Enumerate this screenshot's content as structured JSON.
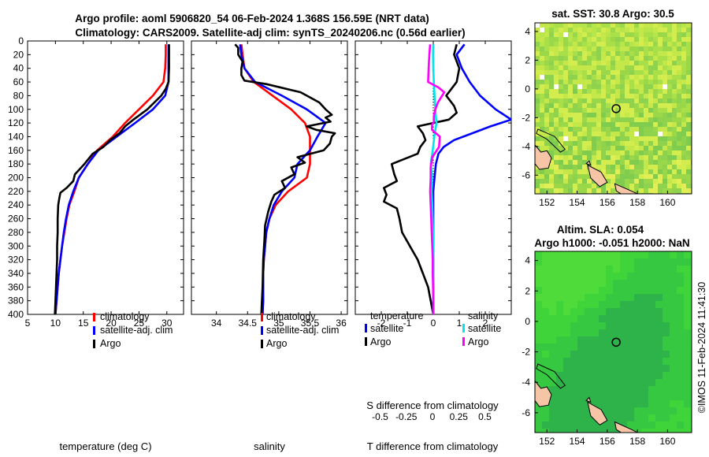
{
  "title_line1": "Argo profile: aoml 5906820_54 06-Feb-2024 1.368S 156.59E (NRT data)",
  "title_line2": "Climatology: CARS2009. Satellite-adj clim: synTS_20240206.nc (0.56d earlier)",
  "credit": "©IMOS 11-Feb-2024 11:41:30",
  "colors": {
    "climatology": "#ff0000",
    "satellite": "#0000ff",
    "argo": "#000000",
    "sal_satellite": "#00e5ee",
    "sal_argo": "#ff00ff",
    "land": "#f5c5a5"
  },
  "chart_data": [
    {
      "id": "temperature",
      "type": "line",
      "xlabel": "temperature (deg C)",
      "xlim": [
        5,
        33
      ],
      "ylim": [
        0,
        400
      ],
      "y_reversed": true,
      "xticks": [
        "5",
        "10",
        "15",
        "20",
        "25",
        "30"
      ],
      "xtick_values": [
        5,
        10,
        15,
        20,
        25,
        30
      ],
      "yticks": [
        "0",
        "20",
        "40",
        "60",
        "80",
        "100",
        "120",
        "140",
        "160",
        "180",
        "200",
        "220",
        "240",
        "260",
        "280",
        "300",
        "320",
        "340",
        "360",
        "380",
        "400"
      ],
      "legend": [
        "climatology",
        "satellite-adj. clim",
        "Argo"
      ],
      "series": [
        {
          "name": "climatology",
          "color": "#ff0000",
          "depth": [
            5,
            20,
            40,
            60,
            80,
            100,
            120,
            140,
            160,
            180,
            200,
            220,
            240,
            260,
            280,
            300,
            320,
            340,
            360,
            380,
            400
          ],
          "values": [
            29.8,
            29.8,
            29.7,
            29.4,
            27.5,
            25,
            22.5,
            20.3,
            17.5,
            15.8,
            14.2,
            13.4,
            12.5,
            12,
            11.6,
            11.2,
            10.9,
            10.6,
            10.4,
            10.2,
            10.0
          ]
        },
        {
          "name": "satellite-adj. clim",
          "color": "#0000ff",
          "depth": [
            5,
            20,
            40,
            60,
            80,
            100,
            120,
            140,
            160,
            180,
            200,
            220,
            240,
            260,
            280,
            300,
            320,
            340,
            360,
            380,
            400
          ],
          "values": [
            30.3,
            30.3,
            30.3,
            30.3,
            29.7,
            27.5,
            24.3,
            21,
            17.7,
            15.8,
            14.2,
            13.2,
            12.4,
            11.9,
            11.5,
            11.2,
            10.9,
            10.6,
            10.4,
            10.2,
            10.0
          ]
        },
        {
          "name": "Argo",
          "color": "#000000",
          "depth": [
            5,
            20,
            40,
            60,
            70,
            80,
            100,
            115,
            125,
            135,
            145,
            155,
            165,
            180,
            195,
            205,
            215,
            222,
            230,
            240,
            260,
            280,
            300,
            320,
            340,
            360,
            380,
            400
          ],
          "values": [
            30.4,
            30.4,
            30.4,
            30.3,
            29.8,
            29,
            26.5,
            24,
            22.5,
            21.5,
            19.8,
            18.6,
            16.7,
            15.2,
            13.5,
            13.2,
            12,
            10.9,
            10.7,
            10.5,
            10.4,
            10.4,
            10.3,
            10.3,
            10.2,
            10.1,
            10.0,
            9.9
          ]
        }
      ]
    },
    {
      "id": "salinity",
      "type": "line",
      "xlabel": "salinity",
      "xlim": [
        33.6,
        36.1
      ],
      "ylim": [
        0,
        400
      ],
      "y_reversed": true,
      "xticks": [
        "34",
        "34.5",
        "35",
        "35.5",
        "36"
      ],
      "xtick_values": [
        34,
        34.5,
        35,
        35.5,
        36
      ],
      "legend": [
        "climatology",
        "satellite-adj. clim",
        "Argo"
      ],
      "series": [
        {
          "name": "climatology",
          "color": "#ff0000",
          "depth": [
            5,
            20,
            40,
            60,
            80,
            100,
            120,
            140,
            160,
            180,
            200,
            220,
            240,
            260,
            280,
            300,
            320,
            340,
            360,
            380,
            400
          ],
          "values": [
            34.4,
            34.42,
            34.45,
            34.6,
            34.9,
            35.2,
            35.42,
            35.5,
            35.5,
            35.5,
            35.45,
            35.15,
            34.95,
            34.85,
            34.8,
            34.78,
            34.76,
            34.75,
            34.75,
            34.75,
            34.74
          ]
        },
        {
          "name": "satellite-adj. clim",
          "color": "#0000ff",
          "depth": [
            5,
            20,
            40,
            60,
            80,
            100,
            120,
            140,
            160,
            180,
            200,
            220,
            240,
            260,
            280,
            300,
            320,
            340,
            360,
            380,
            400
          ],
          "values": [
            34.38,
            34.4,
            34.45,
            34.62,
            35.05,
            35.45,
            35.75,
            35.62,
            35.5,
            35.3,
            35.25,
            35.05,
            34.92,
            34.85,
            34.8,
            34.78,
            34.76,
            34.75,
            34.75,
            34.75,
            34.74
          ]
        },
        {
          "name": "Argo",
          "color": "#000000",
          "depth": [
            5,
            10,
            20,
            30,
            40,
            50,
            58,
            63,
            75,
            90,
            100,
            108,
            112,
            118,
            125,
            130,
            135,
            140,
            150,
            160,
            170,
            178,
            185,
            195,
            205,
            215,
            225,
            235,
            250,
            270,
            290,
            320,
            360,
            400
          ],
          "values": [
            34.3,
            34.35,
            34.35,
            34.42,
            34.4,
            34.4,
            34.45,
            34.8,
            35.35,
            35.65,
            35.75,
            35.85,
            35.75,
            35.83,
            35.45,
            35.6,
            35.9,
            35.85,
            35.82,
            35.72,
            35.3,
            35.42,
            35.2,
            35.25,
            35.05,
            35.1,
            34.93,
            34.88,
            34.83,
            34.78,
            34.77,
            34.75,
            34.74,
            34.72
          ]
        }
      ]
    },
    {
      "id": "differences",
      "type": "line",
      "xlabel": "T difference from climatology",
      "xlabel_top": "S difference from climatology",
      "xlim": [
        -3,
        3
      ],
      "ylim": [
        0,
        400
      ],
      "y_reversed": true,
      "xticks": [
        "-2",
        "-1",
        "0",
        "1",
        "2"
      ],
      "xtick_values": [
        -2,
        -1,
        0,
        1,
        2
      ],
      "sticks": [
        "-0.5",
        "-0.25",
        "0",
        "0.25",
        "0.5"
      ],
      "stick_values": [
        -0.5,
        -0.25,
        0,
        0.25,
        0.5
      ],
      "legend_temperature_title": "temperature",
      "legend_salinity_title": "salinity",
      "legend_temperature": [
        "satellite",
        "Argo"
      ],
      "legend_salinity": [
        "satellite",
        "Argo"
      ],
      "series": [
        {
          "name": "temperature satellite",
          "color": "#0000ff",
          "depth": [
            5,
            20,
            40,
            60,
            80,
            100,
            115,
            125,
            135,
            145,
            155,
            165,
            180,
            200,
            220,
            240,
            260,
            280,
            300,
            320,
            340,
            360,
            380,
            400
          ],
          "values": [
            1.2,
            0.9,
            1.1,
            1.4,
            1.8,
            2.4,
            3,
            2.2,
            1.5,
            0.8,
            0.4,
            0.2,
            0.1,
            0.05,
            0,
            0,
            0,
            0,
            0,
            0,
            0,
            0,
            0,
            0
          ]
        },
        {
          "name": "temperature Argo",
          "color": "#000000",
          "depth": [
            5,
            20,
            40,
            60,
            70,
            80,
            95,
            105,
            115,
            125,
            135,
            145,
            155,
            165,
            180,
            195,
            205,
            215,
            225,
            235,
            245,
            260,
            280,
            300,
            320,
            340,
            360,
            380,
            400
          ],
          "values": [
            0.9,
            0.8,
            1.0,
            0.9,
            0.7,
            0.5,
            0.8,
            0.9,
            0.6,
            -0.6,
            -0.4,
            -0.3,
            -0.5,
            -0.6,
            -1.6,
            -1.5,
            -1.4,
            -1.9,
            -1.8,
            -1.9,
            -1.4,
            -1.3,
            -1.2,
            -0.9,
            -0.6,
            -0.4,
            -0.2,
            -0.1,
            0
          ]
        },
        {
          "name": "salinity satellite",
          "color": "#00e5ee",
          "depth": [
            5,
            20,
            40,
            60,
            80,
            100,
            120,
            140,
            160,
            180,
            200,
            220,
            240,
            260,
            280,
            300,
            320,
            340,
            360,
            380,
            400
          ],
          "values": [
            0,
            -0.01,
            0,
            0.02,
            0.05,
            0.08,
            0.12,
            0.04,
            -0.02,
            -0.1,
            -0.05,
            -0.07,
            -0.04,
            -0.02,
            -0.01,
            0,
            0,
            0,
            0,
            0,
            0
          ]
        },
        {
          "name": "salinity Argo",
          "color": "#ff00ff",
          "depth": [
            5,
            20,
            40,
            60,
            68,
            75,
            90,
            100,
            110,
            118,
            123,
            130,
            140,
            155,
            170,
            185,
            200,
            220,
            240,
            260,
            280,
            300,
            320,
            340,
            360,
            380,
            400
          ],
          "values": [
            -0.12,
            -0.15,
            -0.18,
            -0.2,
            0.2,
            0.42,
            0.18,
            0.08,
            0.02,
            0.02,
            -0.05,
            -0.05,
            0.25,
            0.22,
            -0.04,
            -0.1,
            -0.1,
            -0.12,
            -0.1,
            -0.08,
            -0.06,
            -0.04,
            -0.02,
            -0.02,
            -0.01,
            0,
            0
          ]
        }
      ]
    },
    {
      "id": "sst_map",
      "type": "heatmap",
      "title": "sat. SST: 30.8 Argo: 30.5",
      "xticks": [
        "152",
        "154",
        "156",
        "158",
        "160"
      ],
      "xtick_values": [
        152,
        154,
        156,
        158,
        160
      ],
      "yticks": [
        "4",
        "2",
        "0",
        "-2",
        "-4",
        "-6"
      ],
      "ytick_values": [
        4,
        2,
        0,
        -2,
        -4,
        -6
      ],
      "xlim": [
        151.2,
        161.6
      ],
      "ylim": [
        -7.3,
        4.6
      ],
      "float_position": {
        "lon": 156.59,
        "lat": -1.368
      }
    },
    {
      "id": "sla_map",
      "type": "heatmap",
      "title_line1": "Altim. SLA: 0.054",
      "title_line2": "Argo h1000: -0.051 h2000: NaN",
      "xticks": [
        "152",
        "154",
        "156",
        "158",
        "160"
      ],
      "xtick_values": [
        152,
        154,
        156,
        158,
        160
      ],
      "yticks": [
        "4",
        "2",
        "0",
        "-2",
        "-4",
        "-6"
      ],
      "ytick_values": [
        4,
        2,
        0,
        -2,
        -4,
        -6
      ],
      "xlim": [
        151.2,
        161.6
      ],
      "ylim": [
        -7.3,
        4.6
      ],
      "float_position": {
        "lon": 156.59,
        "lat": -1.368
      }
    }
  ]
}
